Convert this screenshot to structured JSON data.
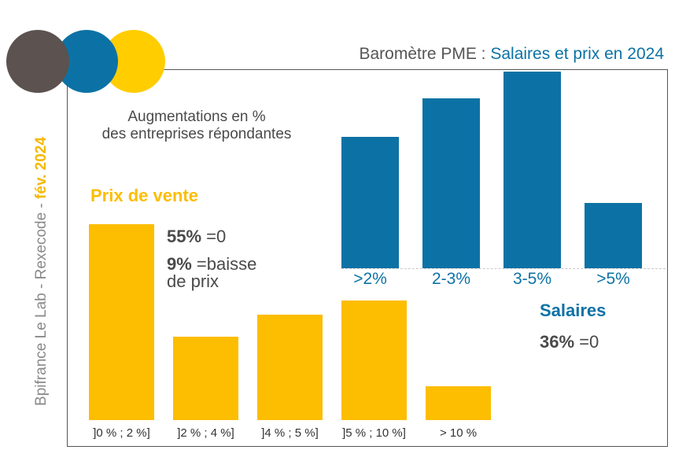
{
  "header": {
    "title_prefix": "Baromètre PME : ",
    "title_highlight": "Salaires et prix en 2024"
  },
  "side_label": {
    "text": "Bpifrance Le Lab - Rexecode - ",
    "highlight": "fév. 2024"
  },
  "subtitle": {
    "line1": "Augmentations en %",
    "line2": "des entreprises répondantes"
  },
  "colors": {
    "circle_brown": "#5c524f",
    "circle_blue": "#0c72a5",
    "circle_yellow": "#ffcd00",
    "salaires": "#0c72a5",
    "prix": "#fdbd00"
  },
  "chart_data": [
    {
      "type": "bar",
      "title": "Salaires",
      "categories": [
        ">2%",
        "2-3%",
        "3-5%",
        ">5%"
      ],
      "values": [
        17,
        22,
        25.5,
        8.5
      ],
      "ylim": [
        0,
        26
      ],
      "note_value": "36%",
      "note_text": " =0"
    },
    {
      "type": "bar",
      "title": "Prix de vente",
      "categories": [
        "]0 % ; 2 %]",
        "]2 % ; 4 %]",
        "]4 % ; 5 %]",
        "]5 % ; 10 %]",
        "> 10 %"
      ],
      "values": [
        24.5,
        10.4,
        13.2,
        15,
        4.2
      ],
      "ylim": [
        0,
        26
      ],
      "note1_value": "55%",
      "note1_text": " =0",
      "note2_value": "9%",
      "note2_text": " =baisse",
      "note2_line2": "de prix"
    }
  ]
}
